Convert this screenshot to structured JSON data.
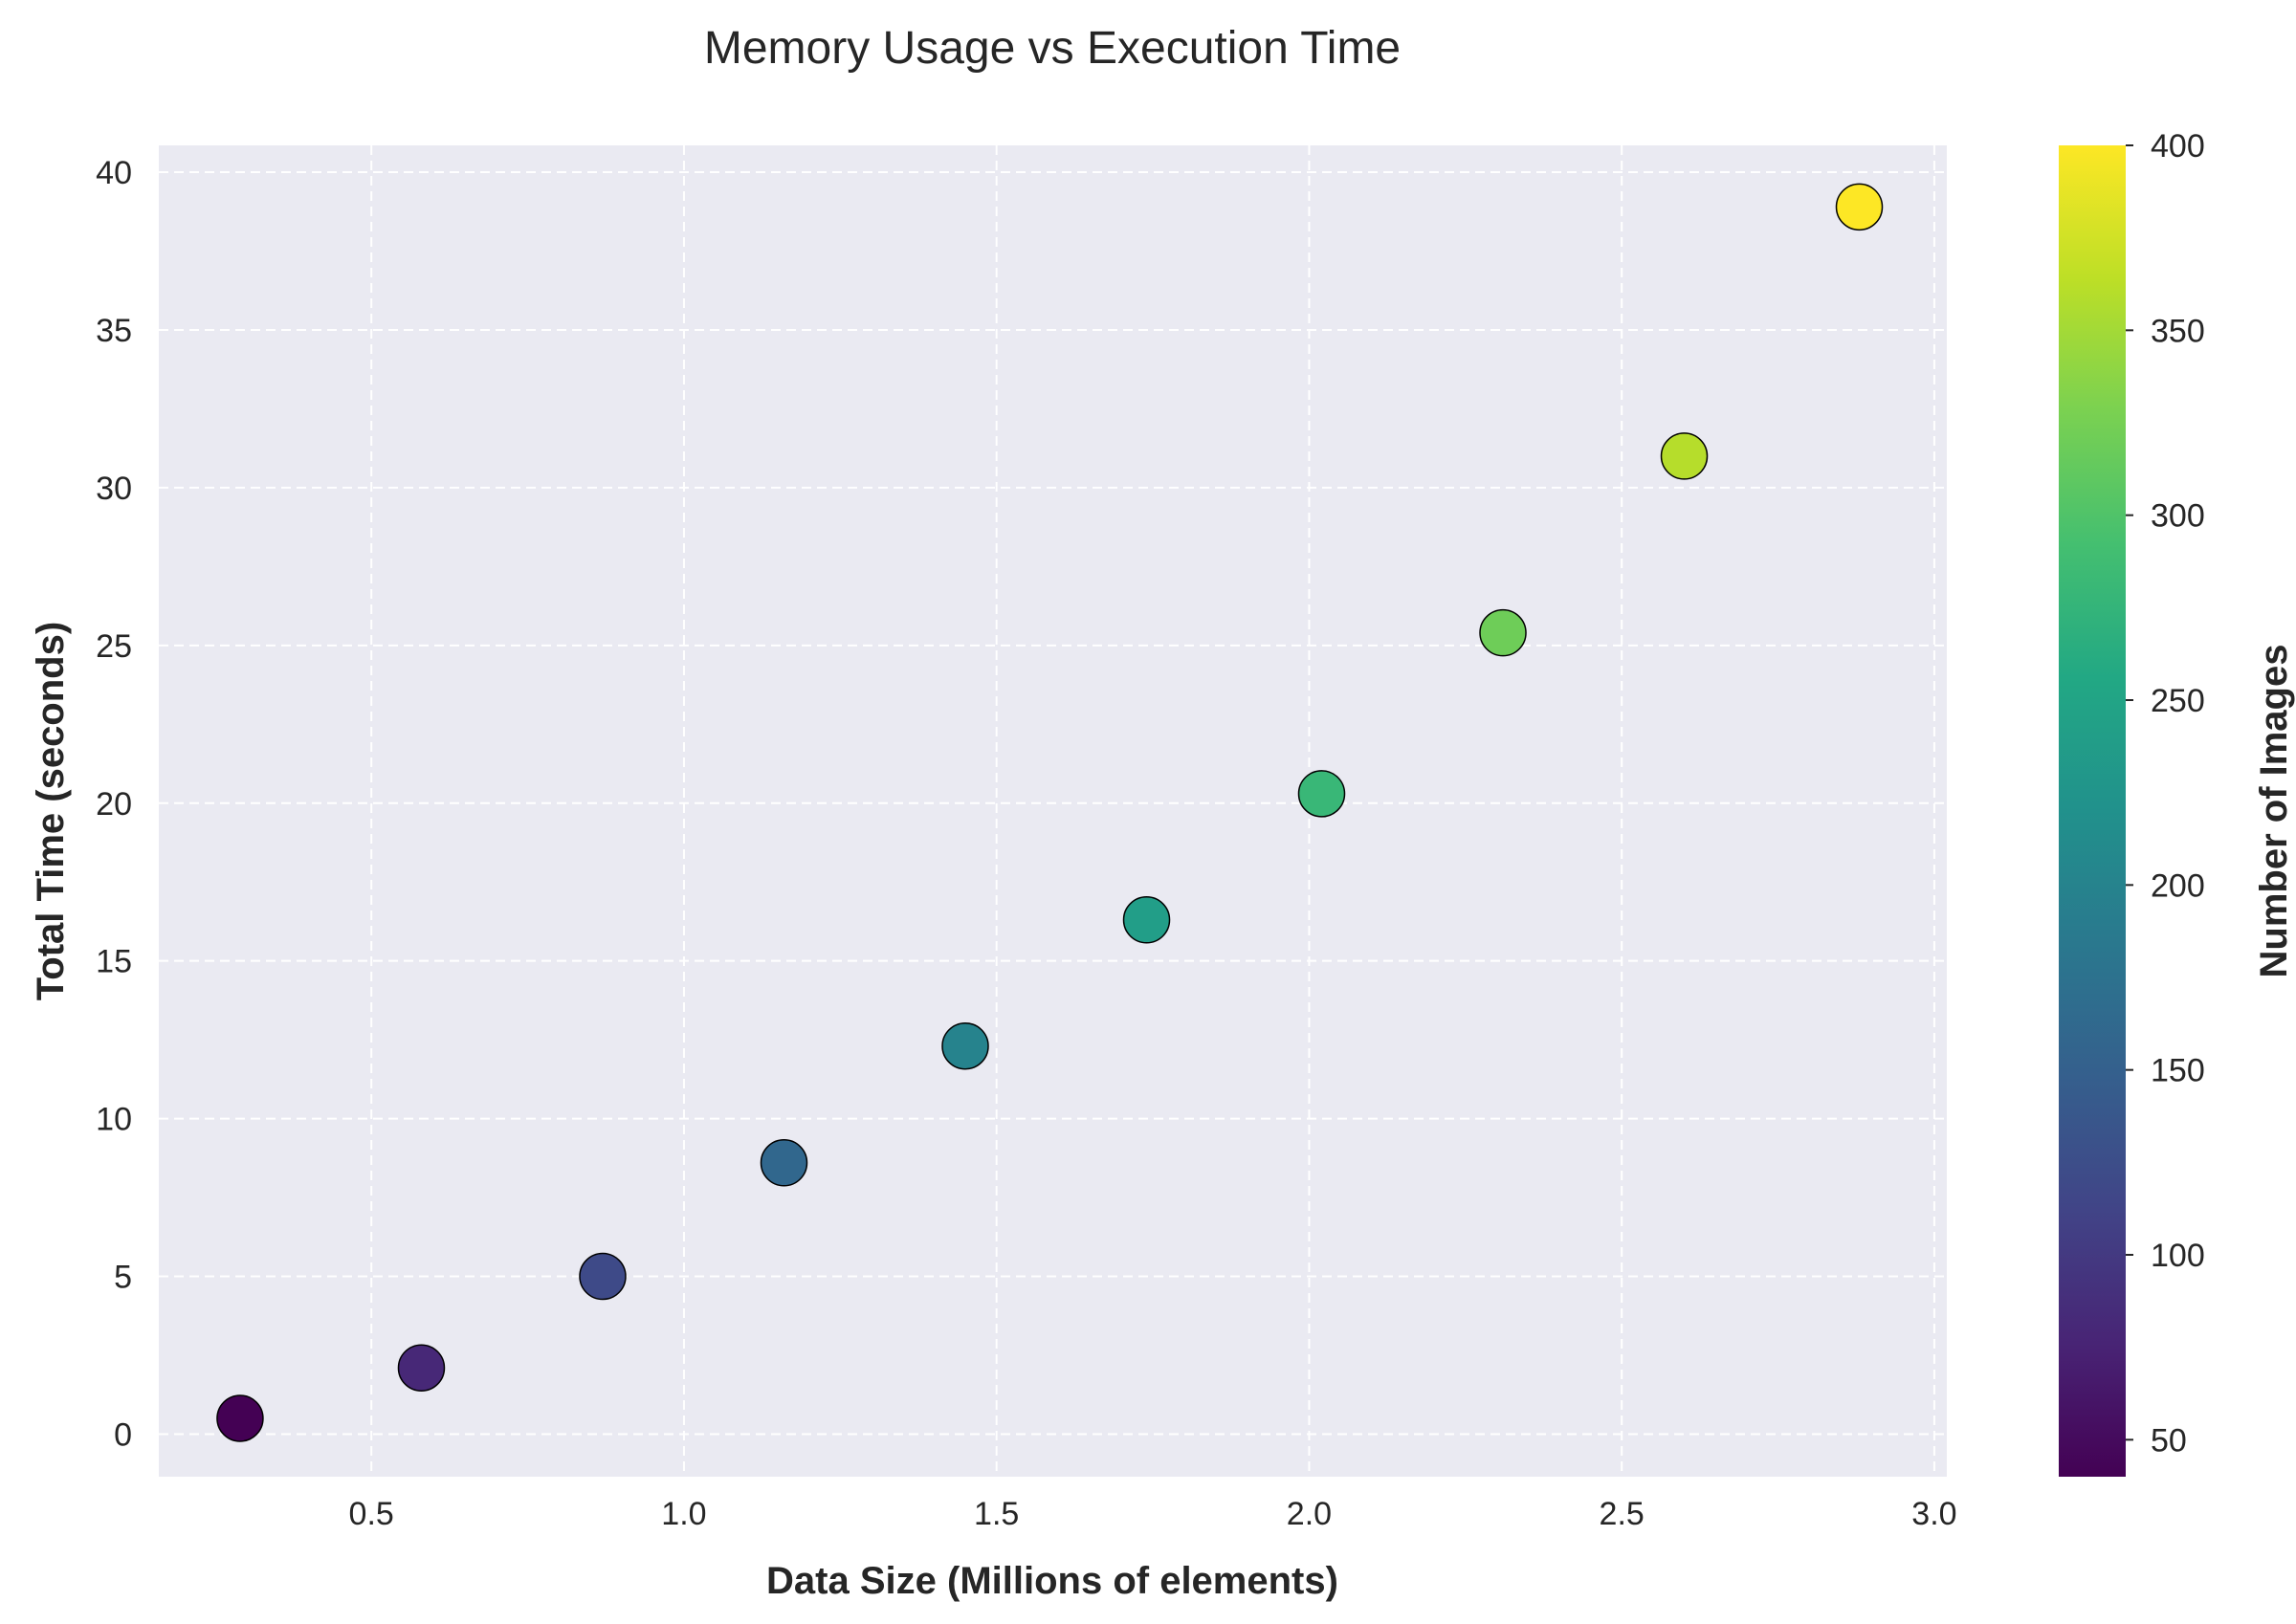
{
  "chart_data": {
    "type": "scatter",
    "title": "Memory Usage vs Execution Time",
    "xlabel": "Data Size (Millions of elements)",
    "ylabel": "Total Time (seconds)",
    "colorbar_label": "Number of Images",
    "xlim": [
      0.16,
      3.02
    ],
    "ylim": [
      -1.35,
      40.85
    ],
    "clim": [
      40,
      400
    ],
    "xticks": [
      0.5,
      1.0,
      1.5,
      2.0,
      2.5,
      3.0
    ],
    "yticks": [
      0,
      5,
      10,
      15,
      20,
      25,
      30,
      35,
      40
    ],
    "cticks": [
      50,
      100,
      150,
      200,
      250,
      300,
      350,
      400
    ],
    "grid": true,
    "colormap": "viridis",
    "background": "#eaeaf2",
    "points": [
      {
        "x": 0.29,
        "y": 0.5,
        "c": 40
      },
      {
        "x": 0.58,
        "y": 2.1,
        "c": 80
      },
      {
        "x": 0.87,
        "y": 5.0,
        "c": 120
      },
      {
        "x": 1.16,
        "y": 8.6,
        "c": 160
      },
      {
        "x": 1.45,
        "y": 12.3,
        "c": 200
      },
      {
        "x": 1.74,
        "y": 16.3,
        "c": 240
      },
      {
        "x": 2.02,
        "y": 20.3,
        "c": 280
      },
      {
        "x": 2.31,
        "y": 25.4,
        "c": 320
      },
      {
        "x": 2.6,
        "y": 31.0,
        "c": 360
      },
      {
        "x": 2.88,
        "y": 38.9,
        "c": 400
      }
    ]
  }
}
